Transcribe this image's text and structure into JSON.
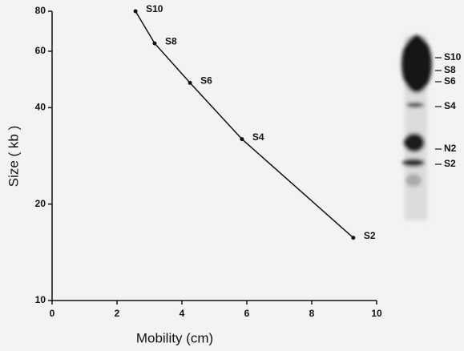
{
  "chart_data": {
    "type": "line",
    "x_label": "Mobility (cm)",
    "y_label": "Size ( kb )",
    "x": [
      2.57,
      3.16,
      4.25,
      5.85,
      9.28
    ],
    "values": [
      80,
      63.5,
      47.8,
      31.9,
      15.7
    ],
    "point_labels": [
      "S10",
      "S8",
      "S6",
      "S4",
      "S2"
    ],
    "color": "#111111",
    "xlim": [
      0,
      10
    ],
    "xticks": [
      0,
      2,
      4,
      6,
      8,
      10
    ],
    "ylim": [
      10,
      80
    ],
    "yticks": [
      10,
      20,
      40,
      60,
      80
    ],
    "log_y": true
  },
  "gel": {
    "labels": [
      "S10",
      "S8",
      "S6",
      "S4",
      "N2",
      "S2"
    ]
  }
}
